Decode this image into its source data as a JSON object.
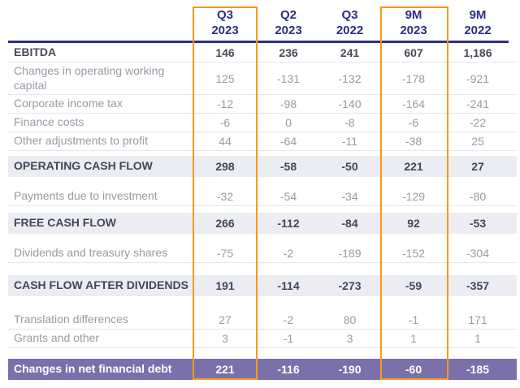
{
  "chart_data": {
    "type": "table",
    "columns": [
      {
        "label": "Q3 2023",
        "line1": "Q3",
        "line2": "2023",
        "highlighted": true
      },
      {
        "label": "Q2 2023",
        "line1": "Q2",
        "line2": "2023",
        "highlighted": false
      },
      {
        "label": "Q3 2022",
        "line1": "Q3",
        "line2": "2022",
        "highlighted": false
      },
      {
        "label": "9M 2023",
        "line1": "9M",
        "line2": "2023",
        "highlighted": true
      },
      {
        "label": "9M 2022",
        "line1": "9M",
        "line2": "2022",
        "highlighted": false
      }
    ],
    "highlighted_columns": [
      "Q3 2023",
      "9M 2023"
    ],
    "rows": [
      {
        "style": "bold",
        "label": "EBITDA",
        "values": [
          "146",
          "236",
          "241",
          "607",
          "1,186"
        ]
      },
      {
        "style": "item",
        "label": "Changes in operating working capital",
        "values": [
          "125",
          "-131",
          "-132",
          "-178",
          "-921"
        ]
      },
      {
        "style": "item",
        "label": "Corporate income tax",
        "values": [
          "-12",
          "-98",
          "-140",
          "-164",
          "-241"
        ]
      },
      {
        "style": "item",
        "label": "Finance costs",
        "values": [
          "-6",
          "0",
          "-8",
          "-6",
          "-22"
        ]
      },
      {
        "style": "item",
        "label": "Other adjustments to profit",
        "values": [
          "44",
          "-64",
          "-11",
          "-38",
          "25"
        ]
      },
      {
        "style": "subtotal",
        "label": "OPERATING CASH FLOW",
        "values": [
          "298",
          "-58",
          "-50",
          "221",
          "27"
        ]
      },
      {
        "style": "item",
        "label": "Payments due to investment",
        "values": [
          "-32",
          "-54",
          "-34",
          "-129",
          "-80"
        ]
      },
      {
        "style": "subtotal",
        "label": "FREE CASH FLOW",
        "values": [
          "266",
          "-112",
          "-84",
          "92",
          "-53"
        ]
      },
      {
        "style": "item",
        "label": "Dividends and treasury shares",
        "values": [
          "-75",
          "-2",
          "-189",
          "-152",
          "-304"
        ]
      },
      {
        "style": "subtotal",
        "label": "CASH FLOW AFTER DIVIDENDS",
        "values": [
          "191",
          "-114",
          "-273",
          "-59",
          "-357"
        ]
      },
      {
        "style": "item",
        "label": "Translation differences",
        "values": [
          "27",
          "-2",
          "80",
          "-1",
          "171"
        ]
      },
      {
        "style": "item",
        "label": "Grants and other",
        "values": [
          "3",
          "-1",
          "3",
          "1",
          "1"
        ]
      },
      {
        "style": "total",
        "label": "Changes in net financial debt",
        "values": [
          "221",
          "-116",
          "-190",
          "-60",
          "-185"
        ]
      }
    ]
  },
  "colors": {
    "header_navy": "#2d3180",
    "header_rule_navy": "#2d3077",
    "accent_orange": "#f5991f",
    "subtotal_band": "#ecedf3",
    "total_purple": "#7b70a9",
    "muted_text": "#979ba5",
    "dark_text": "#42465a"
  }
}
